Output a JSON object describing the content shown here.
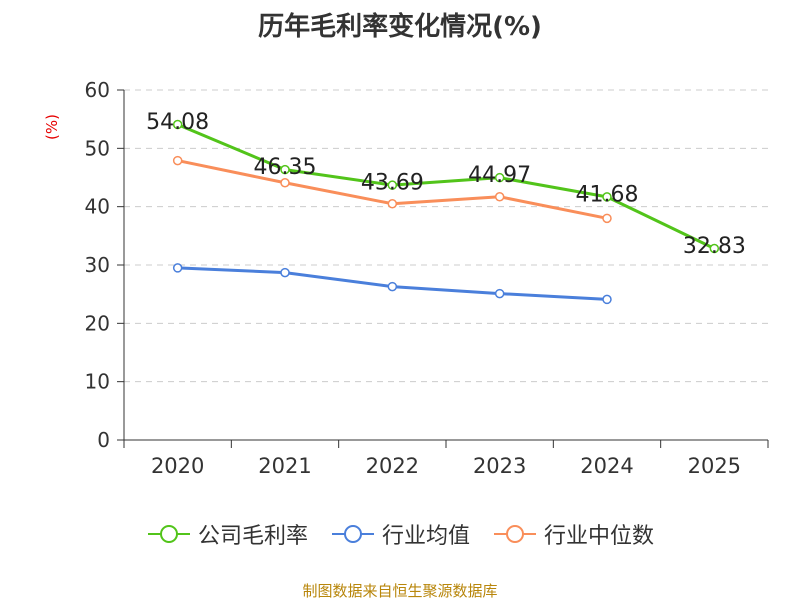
{
  "title": "历年毛利率变化情况(%)",
  "unit_label": "(%)",
  "source_note": "制图数据来自恒生聚源数据库",
  "colors": {
    "company": "#52c41a",
    "industry_avg": "#4a7fdb",
    "industry_median": "#f98e5a",
    "grid": "#cccccc",
    "axis": "#333333",
    "text": "#222222"
  },
  "chart_data": {
    "type": "line",
    "title": "历年毛利率变化情况(%)",
    "xlabel": "",
    "ylabel": "(%)",
    "categories": [
      "2020",
      "2021",
      "2022",
      "2023",
      "2024",
      "2025"
    ],
    "ylim": [
      0,
      60
    ],
    "yticks": [
      0,
      10,
      20,
      30,
      40,
      50,
      60
    ],
    "grid": true,
    "legend_position": "bottom",
    "series": [
      {
        "name": "公司毛利率",
        "color": "#52c41a",
        "values": [
          54.08,
          46.35,
          43.69,
          44.97,
          41.68,
          32.83
        ],
        "labels": [
          "54.08",
          "46.35",
          "43.69",
          "44.97",
          "41.68",
          "32.83"
        ]
      },
      {
        "name": "行业均值",
        "color": "#4a7fdb",
        "values": [
          29.5,
          28.7,
          26.3,
          25.1,
          24.1,
          null
        ]
      },
      {
        "name": "行业中位数",
        "color": "#f98e5a",
        "values": [
          47.9,
          44.1,
          40.5,
          41.7,
          38.0,
          null
        ]
      }
    ]
  }
}
